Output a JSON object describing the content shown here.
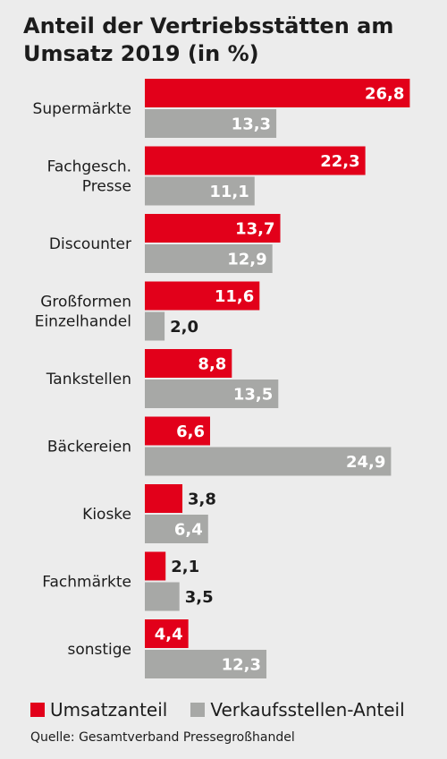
{
  "chart_data": {
    "type": "bar",
    "orientation": "horizontal",
    "title": "Anteil der Vertriebsstätten am Umsatz 2019 (in %)",
    "categories": [
      [
        "Supermärkte"
      ],
      [
        "Fachgesch.",
        "Presse"
      ],
      [
        "Discounter"
      ],
      [
        "Großformen",
        "Einzelhandel"
      ],
      [
        "Tankstellen"
      ],
      [
        "Bäckereien"
      ],
      [
        "Kioske"
      ],
      [
        "Fachmärkte"
      ],
      [
        "sonstige"
      ]
    ],
    "series": [
      {
        "name": "Umsatzanteil",
        "color": "#e2001a",
        "values": [
          26.8,
          22.3,
          13.7,
          11.6,
          8.8,
          6.6,
          3.8,
          2.1,
          4.4
        ],
        "labels": [
          "26,8",
          "22,3",
          "13,7",
          "11,6",
          "8,8",
          "6,6",
          "3,8",
          "2,1",
          "4,4"
        ]
      },
      {
        "name": "Verkaufsstellen-Anteil",
        "color": "#a7a8a6",
        "values": [
          13.3,
          11.1,
          12.9,
          2.0,
          13.5,
          24.9,
          6.4,
          3.5,
          12.3
        ],
        "labels": [
          "13,3",
          "11,1",
          "12,9",
          "2,0",
          "13,5",
          "24,9",
          "6,4",
          "3,5",
          "12,3"
        ]
      }
    ],
    "legend": "bottom",
    "grid": false
  },
  "source": "Quelle: Gesamtverband Pressegroßhandel"
}
